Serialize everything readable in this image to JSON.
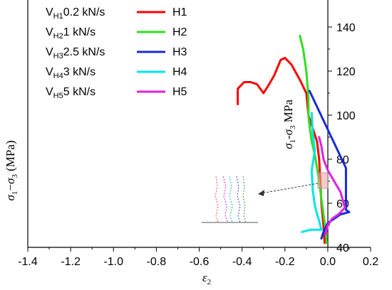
{
  "chart_data": {
    "type": "line",
    "title": "",
    "xlabel": "ε2",
    "ylabel_left": "σ1−σ3 (MPa)",
    "ylabel_right": "σ1-σ3 MPa",
    "xlim": [
      -1.4,
      0.2
    ],
    "ylim": [
      40,
      150
    ],
    "x_ticks": [
      "-1.4",
      "-1.2",
      "-1.0",
      "-0.8",
      "-0.6",
      "-0.4",
      "-0.2",
      "0.0",
      "0.2"
    ],
    "y_ticks": [
      "40",
      "60",
      "80",
      "100",
      "120",
      "140"
    ],
    "legend_position": "top-left",
    "series": [
      {
        "name": "H1",
        "legend_main": "V",
        "legend_sub": "H1",
        "legend_rate": "0.2 kN/s",
        "color": "#ff0000",
        "points": [
          [
            -0.42,
            105
          ],
          [
            -0.42,
            112
          ],
          [
            -0.39,
            115
          ],
          [
            -0.36,
            115
          ],
          [
            -0.33,
            114
          ],
          [
            -0.3,
            110
          ],
          [
            -0.28,
            113
          ],
          [
            -0.25,
            118
          ],
          [
            -0.22,
            125
          ],
          [
            -0.2,
            126
          ],
          [
            -0.17,
            123
          ],
          [
            -0.13,
            116
          ],
          [
            -0.1,
            110
          ],
          [
            -0.09,
            100
          ],
          [
            -0.07,
            94
          ],
          [
            -0.05,
            88
          ],
          [
            -0.04,
            80
          ],
          [
            -0.035,
            70
          ],
          [
            -0.03,
            60
          ],
          [
            -0.02,
            50
          ],
          [
            -0.015,
            42
          ]
        ]
      },
      {
        "name": "H2",
        "legend_main": "V",
        "legend_sub": "H2",
        "legend_rate": "1 kN/s",
        "color": "#2ee01e",
        "points": [
          [
            -0.13,
            136
          ],
          [
            -0.115,
            130
          ],
          [
            -0.1,
            120
          ],
          [
            -0.09,
            108
          ],
          [
            -0.09,
            100
          ],
          [
            -0.085,
            95
          ],
          [
            -0.075,
            88
          ],
          [
            -0.06,
            82
          ],
          [
            -0.05,
            76
          ],
          [
            -0.04,
            70
          ],
          [
            -0.03,
            62
          ],
          [
            -0.02,
            55
          ],
          [
            -0.01,
            48
          ],
          [
            -0.005,
            42
          ]
        ]
      },
      {
        "name": "H3",
        "legend_main": "V",
        "legend_sub": "H3",
        "legend_rate": "2.5 kN/s",
        "color": "#1a2ad6",
        "points": [
          [
            -0.085,
            111
          ],
          [
            0.085,
            76
          ],
          [
            0.085,
            57
          ],
          [
            0.1,
            56
          ],
          [
            0.06,
            55
          ],
          [
            0.0,
            51
          ],
          [
            -0.02,
            47
          ],
          [
            -0.03,
            44
          ]
        ]
      },
      {
        "name": "H4",
        "legend_main": "V",
        "legend_sub": "H4",
        "legend_rate": "3 kN/s",
        "color": "#00e5e5",
        "points": [
          [
            -0.075,
            101
          ],
          [
            -0.07,
            92
          ],
          [
            -0.06,
            84
          ],
          [
            -0.075,
            75
          ],
          [
            -0.07,
            66
          ],
          [
            -0.06,
            59
          ],
          [
            -0.05,
            55
          ],
          [
            -0.04,
            52
          ],
          [
            -0.03,
            48
          ],
          [
            -0.08,
            48
          ],
          [
            -0.12,
            47
          ]
        ]
      },
      {
        "name": "H5",
        "legend_main": "V",
        "legend_sub": "H5",
        "legend_rate": "5 kN/s",
        "color": "#e020e0",
        "points": [
          [
            -0.04,
            90
          ],
          [
            -0.03,
            86
          ],
          [
            -0.02,
            80
          ],
          [
            0.0,
            75
          ],
          [
            0.03,
            70
          ],
          [
            0.06,
            65
          ],
          [
            0.08,
            58
          ],
          [
            0.05,
            55
          ],
          [
            0.02,
            53
          ],
          [
            0.0,
            50
          ],
          [
            -0.01,
            46
          ]
        ]
      }
    ]
  }
}
